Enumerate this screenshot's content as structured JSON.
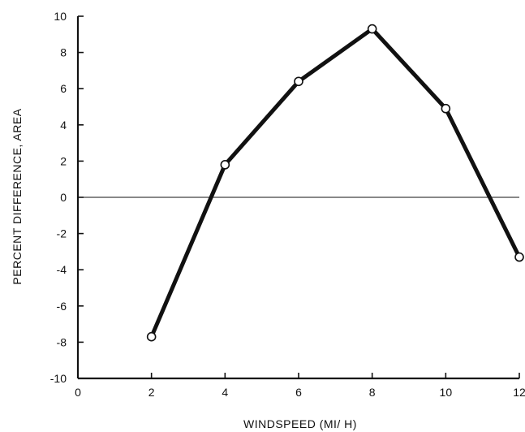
{
  "chart_data": {
    "type": "line",
    "title": "",
    "xlabel": "WINDSPEED (MI/ H)",
    "ylabel": "PERCENT DIFFERENCE, AREA",
    "xlim": [
      0,
      12
    ],
    "ylim": [
      -10,
      10
    ],
    "x_ticks": [
      "0",
      "2",
      "4",
      "6",
      "8",
      "10",
      "12"
    ],
    "y_ticks": [
      "10",
      "8",
      "6",
      "4",
      "2",
      "0",
      "-2",
      "-4",
      "-6",
      "-8",
      "-10"
    ],
    "grid": false,
    "reference_line_y": 0,
    "series": [
      {
        "x": [
          2,
          4,
          6,
          8,
          10,
          12
        ],
        "y": [
          -7.7,
          1.8,
          6.4,
          9.3,
          4.9,
          -3.3
        ]
      }
    ],
    "colors": {
      "line": "#111111",
      "marker_fill": "#ffffff",
      "axis": "#111111"
    }
  }
}
